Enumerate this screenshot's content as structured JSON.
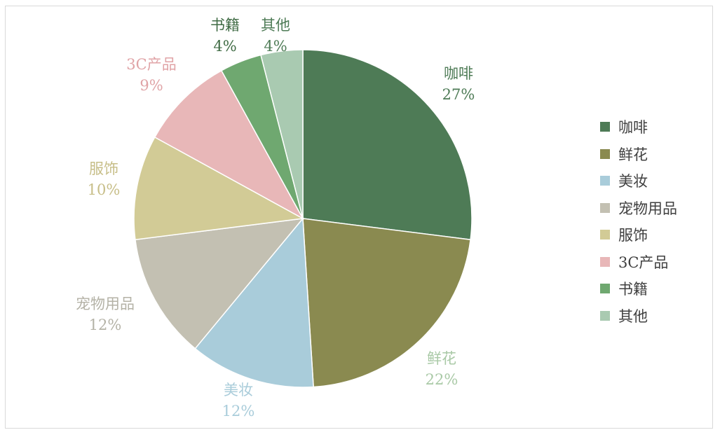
{
  "chart_data": {
    "type": "pie",
    "title": "",
    "slices": [
      {
        "name": "咖啡",
        "value": 27,
        "label": "27%",
        "color": "#4E7B56",
        "label_color": "#4E7B56"
      },
      {
        "name": "鲜花",
        "value": 22,
        "label": "22%",
        "color": "#8A8A50",
        "label_color": "#A9C9A6"
      },
      {
        "name": "美妆",
        "value": 12,
        "label": "12%",
        "color": "#A9CCDA",
        "label_color": "#A9CCDA"
      },
      {
        "name": "宠物用品",
        "value": 12,
        "label": "12%",
        "color": "#C3C0B2",
        "label_color": "#B4B2A6"
      },
      {
        "name": "服饰",
        "value": 10,
        "label": "10%",
        "color": "#D2CB96",
        "label_color": "#C7BE88"
      },
      {
        "name": "3C产品",
        "value": 9,
        "label": "9%",
        "color": "#E8B7B8",
        "label_color": "#E0A3A6"
      },
      {
        "name": "书籍",
        "value": 4,
        "label": "4%",
        "color": "#6FA870",
        "label_color": "#3F6B44"
      },
      {
        "name": "其他",
        "value": 4,
        "label": "4%",
        "color": "#A9CAB1",
        "label_color": "#4E7B56"
      }
    ],
    "legend_position": "right"
  }
}
